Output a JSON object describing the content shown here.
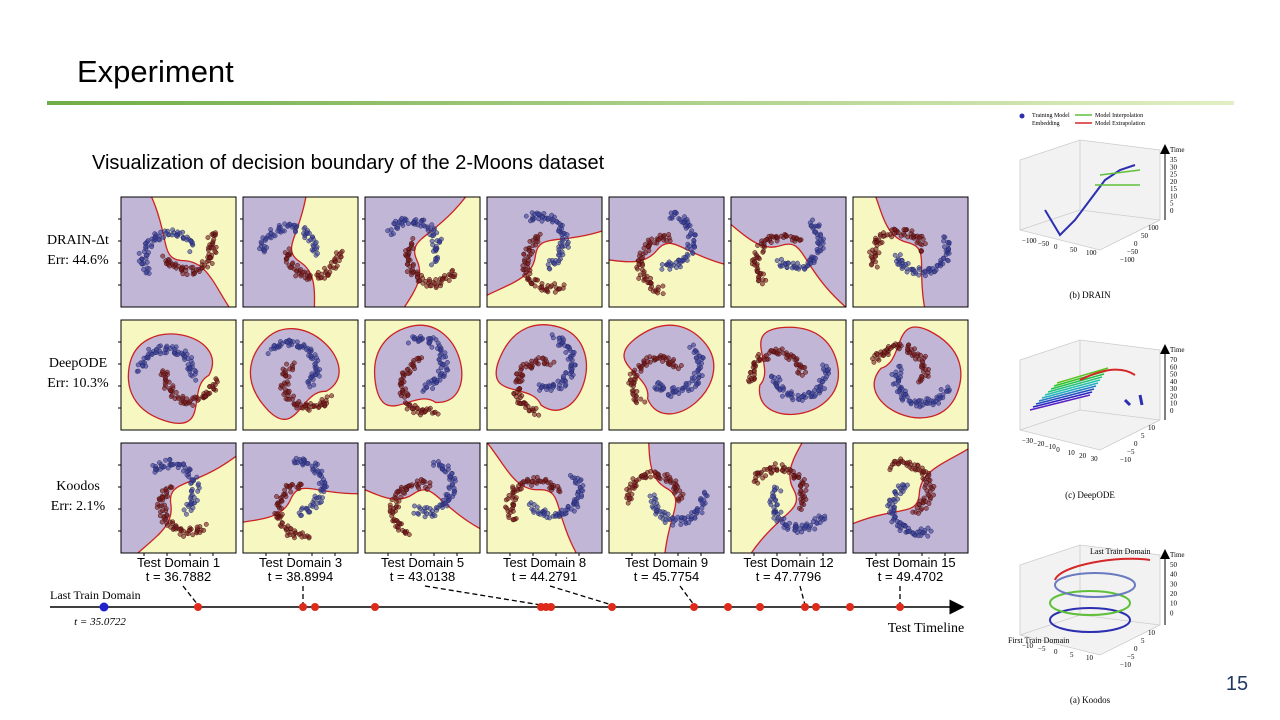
{
  "header": {
    "title": "Experiment"
  },
  "subtitle": "Visualization of decision boundary of the 2-Moons dataset",
  "rows": [
    {
      "method": "DRAIN-Δt",
      "err": "Err: 44.6%"
    },
    {
      "method": "DeepODE",
      "err": "Err: 10.3%"
    },
    {
      "method": "Koodos",
      "err": "Err: 2.1%"
    }
  ],
  "domains": [
    {
      "name": "Test Domain 1",
      "t": "t = 36.7882"
    },
    {
      "name": "Test Domain 3",
      "t": "t = 38.8994"
    },
    {
      "name": "Test Domain 5",
      "t": "t = 43.0138"
    },
    {
      "name": "Test Domain 8",
      "t": "t = 44.2791"
    },
    {
      "name": "Test Domain 9",
      "t": "t = 45.7754"
    },
    {
      "name": "Test Domain 12",
      "t": "t = 47.7796"
    },
    {
      "name": "Test Domain 15",
      "t": "t = 49.4702"
    }
  ],
  "timeline": {
    "start_label": "Last Train Domain",
    "start_t": "t = 35.0722",
    "axis_label": "Test Timeline"
  },
  "side_plots": [
    {
      "legend": [
        "Training Model",
        "Embedding",
        "Model Interpolation",
        "Model Extrapolation"
      ],
      "z_label": "Time",
      "z_ticks": [
        "35",
        "30",
        "25",
        "20",
        "15",
        "10",
        "5",
        "0"
      ],
      "x_ticks": [
        "−100",
        "−50",
        "0",
        "50",
        "100"
      ],
      "y_ticks": [
        "100",
        "50",
        "0",
        "−50",
        "−100"
      ],
      "caption": "(b) DRAIN"
    },
    {
      "z_label": "Time",
      "z_ticks": [
        "70",
        "60",
        "50",
        "40",
        "30",
        "20",
        "10",
        "0"
      ],
      "x_ticks": [
        "−30",
        "−20",
        "−10",
        "0",
        "10",
        "20",
        "30"
      ],
      "y_ticks": [
        "10",
        "5",
        "0",
        "−5",
        "−10"
      ],
      "caption": "(c) DeepODE"
    },
    {
      "annotations": [
        "Last Train Domain",
        "First Train Domain"
      ],
      "z_label": "Time",
      "z_ticks": [
        "50",
        "40",
        "30",
        "20",
        "10",
        "0"
      ],
      "x_ticks": [
        "−10",
        "−5",
        "0",
        "5",
        "10"
      ],
      "y_ticks": [
        "10",
        "5",
        "0",
        "−5",
        "−10"
      ],
      "caption": "(a) Koodos"
    }
  ],
  "page_number": "15"
}
